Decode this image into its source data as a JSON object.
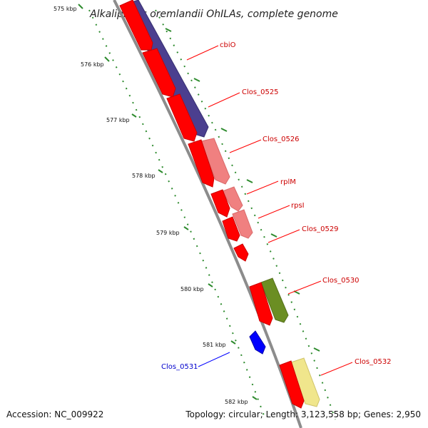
{
  "title": "Alkaliphilus oremlandii OhILAs, complete genome",
  "footer": {
    "accession_prefix": "Accession:",
    "accession": "NC_009922",
    "topology_prefix": "Topology:",
    "topology": "circular",
    "length_prefix": "Length:",
    "length": "3,123,558 bp",
    "genes_prefix": "Genes:",
    "genes": "2,950"
  },
  "kbp_labels": [
    "575 kbp",
    "576 kbp",
    "577 kbp",
    "578 kbp",
    "579 kbp",
    "580 kbp",
    "581 kbp",
    "582 kbp"
  ],
  "gene_labels": [
    "cbiO",
    "Clos_0525",
    "Clos_0526",
    "rplM",
    "rpsI",
    "Clos_0529",
    "Clos_0530",
    "Clos_0531",
    "Clos_0532"
  ],
  "colors": {
    "backbone": "#8c8c8c",
    "tick": "#2e8b2e",
    "cds_red": "#ff0000",
    "cds_pink": "#f08080",
    "cds_purple": "#4b3f8f",
    "cds_olive": "#6b8e23",
    "cds_blue": "#0000ff",
    "cds_yellow": "#f0e68c",
    "label_red": "#cc0000",
    "label_blue": "#0000cc"
  }
}
